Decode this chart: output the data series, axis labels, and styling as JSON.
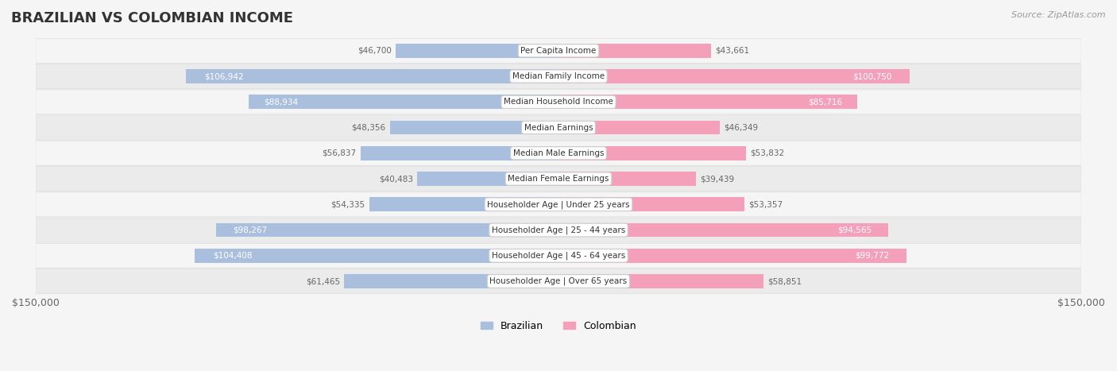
{
  "title": "BRAZILIAN VS COLOMBIAN INCOME",
  "source": "Source: ZipAtlas.com",
  "max_value": 150000,
  "categories": [
    "Per Capita Income",
    "Median Family Income",
    "Median Household Income",
    "Median Earnings",
    "Median Male Earnings",
    "Median Female Earnings",
    "Householder Age | Under 25 years",
    "Householder Age | 25 - 44 years",
    "Householder Age | 45 - 64 years",
    "Householder Age | Over 65 years"
  ],
  "brazilian_values": [
    46700,
    106942,
    88934,
    48356,
    56837,
    40483,
    54335,
    98267,
    104408,
    61465
  ],
  "colombian_values": [
    43661,
    100750,
    85716,
    46349,
    53832,
    39439,
    53357,
    94565,
    99772,
    58851
  ],
  "brazilian_color": "#aabfdd",
  "colombian_color": "#f5a0bb",
  "brazilian_label_color_high": "#ffffff",
  "colombian_label_color_high": "#ffffff",
  "label_color_normal": "#888888",
  "bar_height": 0.55,
  "background_color": "#f5f5f5",
  "row_bg_color": "#ffffff",
  "row_alt_bg_color": "#f0f0f0",
  "high_threshold": 70000,
  "center_label_bg": "#ffffff",
  "center_label_border": "#cccccc"
}
